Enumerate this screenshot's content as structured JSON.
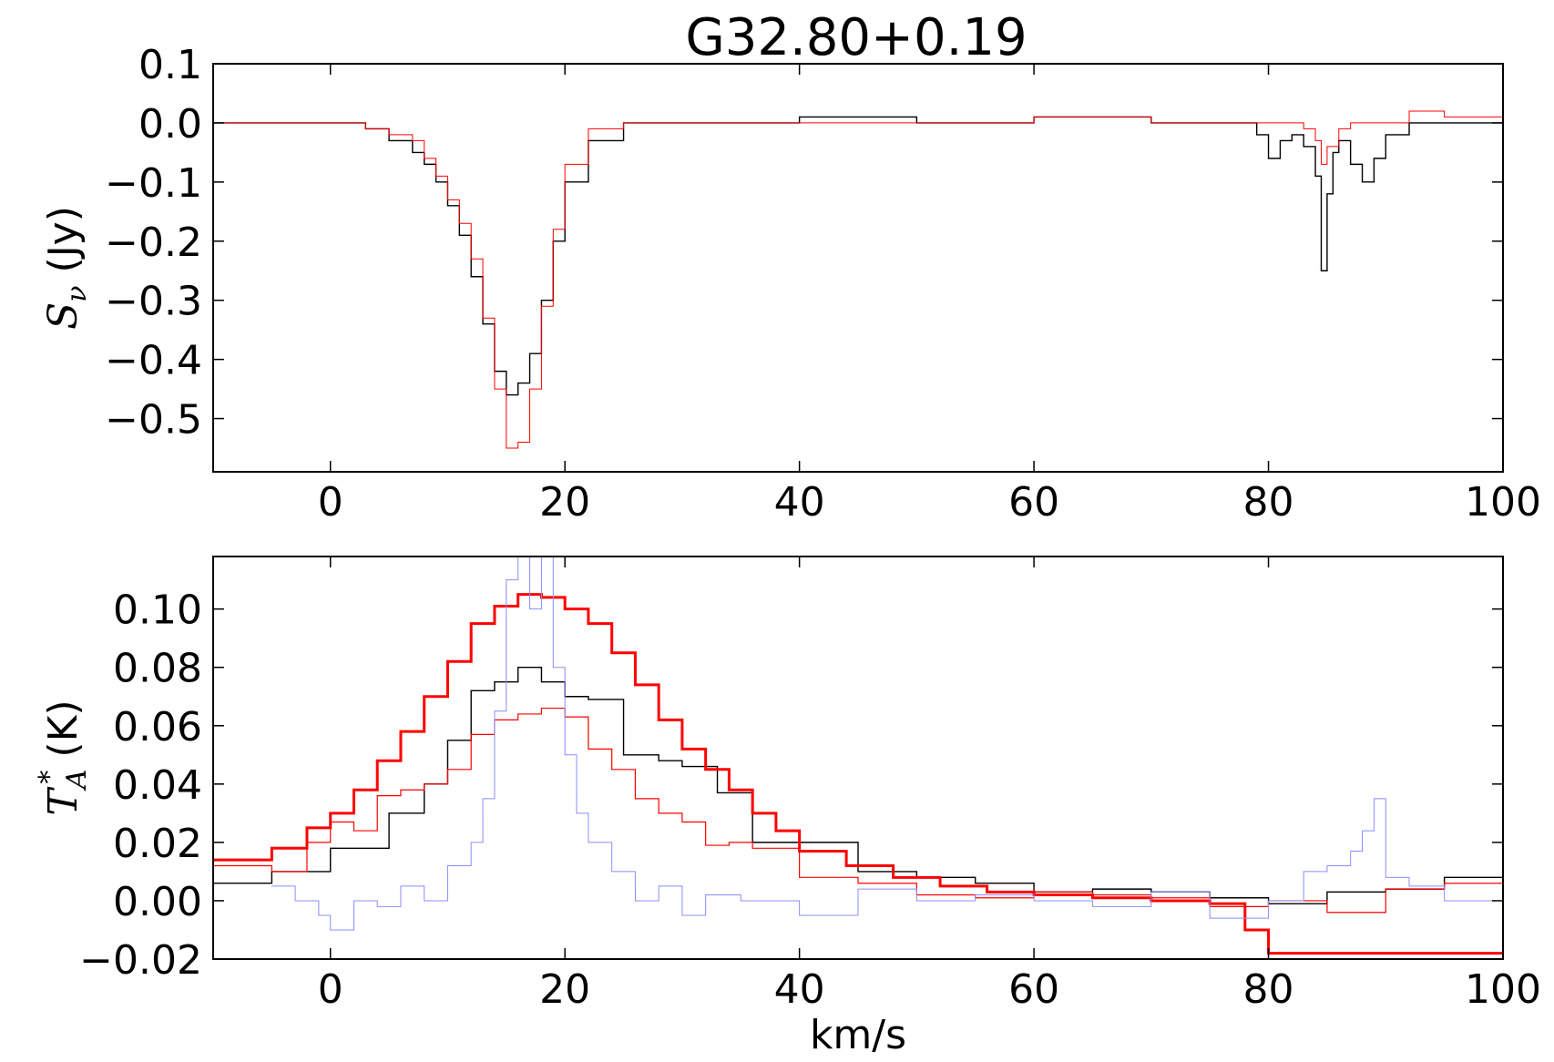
{
  "title": "G32.80+0.19",
  "panels": [
    {
      "id": "top",
      "ylabel": {
        "main": "S",
        "sub": "ν",
        "units": "(Jy)"
      },
      "xlim": [
        -10,
        100
      ],
      "ylim": [
        -0.59,
        0.1
      ],
      "xticks": [
        0,
        20,
        40,
        60,
        80,
        100
      ],
      "xtick_labels": [
        "0",
        "20",
        "40",
        "60",
        "80",
        "100"
      ],
      "yticks": [
        0.1,
        0.0,
        -0.1,
        -0.2,
        -0.3,
        -0.4,
        -0.5
      ],
      "ytick_labels": [
        "0.1",
        "0.0",
        "−0.1",
        "−0.2",
        "−0.3",
        "−0.4",
        "−0.5"
      ]
    },
    {
      "id": "bottom",
      "ylabel": {
        "main": "T",
        "sub": "A",
        "sup": "*",
        "units": "(K)"
      },
      "xlabel": "km/s",
      "xlim": [
        -10,
        100
      ],
      "ylim": [
        -0.02,
        0.118
      ],
      "xticks": [
        0,
        20,
        40,
        60,
        80,
        100
      ],
      "xtick_labels": [
        "0",
        "20",
        "40",
        "60",
        "80",
        "100"
      ],
      "yticks": [
        0.1,
        0.08,
        0.06,
        0.04,
        0.02,
        0.0,
        -0.02
      ],
      "ytick_labels": [
        "0.10",
        "0.08",
        "0.06",
        "0.04",
        "0.02",
        "0.00",
        "−0.02"
      ]
    }
  ],
  "chart_data": [
    {
      "type": "line",
      "title": "G32.80+0.19",
      "xlabel": "",
      "ylabel": "S_nu (Jy)",
      "xlim": [
        -10,
        100
      ],
      "ylim": [
        -0.59,
        0.1
      ],
      "step": true,
      "series": [
        {
          "color": "#000000",
          "linewidth": 1.4,
          "x": [
            -10,
            -5,
            0,
            3,
            5,
            7,
            8,
            9,
            10,
            11,
            12,
            13,
            14,
            15,
            16,
            17,
            18,
            19,
            20,
            22,
            25,
            30,
            40,
            50,
            60,
            70,
            78,
            79,
            80,
            81,
            82,
            83,
            84,
            84.5,
            85,
            85.5,
            86,
            87,
            88,
            89,
            90,
            92,
            95,
            100
          ],
          "y": [
            0.0,
            0.0,
            0.0,
            -0.01,
            -0.03,
            -0.05,
            -0.07,
            -0.1,
            -0.14,
            -0.19,
            -0.26,
            -0.34,
            -0.42,
            -0.46,
            -0.44,
            -0.39,
            -0.3,
            -0.2,
            -0.1,
            -0.03,
            0.0,
            0.0,
            0.01,
            0.0,
            0.01,
            0.0,
            0.0,
            -0.02,
            -0.06,
            -0.03,
            -0.02,
            -0.04,
            -0.09,
            -0.25,
            -0.12,
            -0.05,
            -0.03,
            -0.07,
            -0.1,
            -0.06,
            -0.02,
            0.0,
            0.0,
            0.0
          ]
        },
        {
          "color": "#ff0000",
          "linewidth": 1.0,
          "x": [
            -10,
            -5,
            0,
            3,
            5,
            7,
            8,
            9,
            10,
            11,
            12,
            13,
            14,
            15,
            16,
            17,
            18,
            19,
            20,
            22,
            25,
            30,
            40,
            50,
            60,
            70,
            80,
            83,
            84,
            84.5,
            85,
            86,
            87,
            90,
            92,
            95,
            100
          ],
          "y": [
            0.0,
            0.0,
            0.0,
            -0.01,
            -0.02,
            -0.03,
            -0.06,
            -0.09,
            -0.13,
            -0.17,
            -0.23,
            -0.33,
            -0.45,
            -0.55,
            -0.54,
            -0.45,
            -0.31,
            -0.18,
            -0.07,
            -0.01,
            0.0,
            0.0,
            0.0,
            0.0,
            0.01,
            0.0,
            0.0,
            -0.01,
            -0.03,
            -0.07,
            -0.04,
            -0.01,
            0.0,
            0.0,
            0.02,
            0.01,
            0.0
          ]
        }
      ]
    },
    {
      "type": "line",
      "title": "",
      "xlabel": "km/s",
      "ylabel": "T_A* (K)",
      "xlim": [
        -10,
        100
      ],
      "ylim": [
        -0.02,
        0.118
      ],
      "step": true,
      "series": [
        {
          "color": "#000000",
          "linewidth": 1.4,
          "x": [
            -10,
            -5,
            0,
            5,
            8,
            10,
            12,
            14,
            16,
            18,
            20,
            22,
            25,
            28,
            30,
            33,
            36,
            40,
            45,
            50,
            55,
            60,
            65,
            70,
            75,
            80,
            85,
            90,
            95,
            100
          ],
          "y": [
            0.006,
            0.01,
            0.018,
            0.03,
            0.04,
            0.055,
            0.072,
            0.075,
            0.08,
            0.075,
            0.07,
            0.069,
            0.05,
            0.048,
            0.046,
            0.037,
            0.02,
            0.02,
            0.01,
            0.008,
            0.006,
            0.003,
            0.004,
            0.003,
            0.001,
            -0.001,
            0.003,
            0.004,
            0.008,
            0.01
          ]
        },
        {
          "color": "#ff0000",
          "linewidth": 1.2,
          "x": [
            -10,
            -5,
            -2,
            0,
            2,
            4,
            6,
            8,
            10,
            12,
            14,
            16,
            18,
            20,
            22,
            24,
            26,
            28,
            30,
            32,
            34,
            36,
            40,
            45,
            50,
            55,
            60,
            65,
            70,
            75,
            80,
            85,
            90,
            95,
            100
          ],
          "y": [
            0.012,
            0.01,
            0.02,
            0.027,
            0.024,
            0.036,
            0.038,
            0.04,
            0.045,
            0.057,
            0.062,
            0.064,
            0.066,
            0.063,
            0.052,
            0.045,
            0.035,
            0.03,
            0.027,
            0.019,
            0.02,
            0.018,
            0.008,
            0.006,
            0.002,
            0.001,
            0.003,
            0.002,
            0.001,
            -0.002,
            0.0,
            -0.004,
            0.004,
            0.006,
            0.012
          ]
        },
        {
          "color": "#ff0000",
          "linewidth": 3.0,
          "x": [
            -10,
            -5,
            -2,
            0,
            2,
            4,
            6,
            8,
            10,
            12,
            14,
            16,
            18,
            20,
            22,
            24,
            26,
            28,
            30,
            32,
            34,
            36,
            38,
            40,
            44,
            48,
            52,
            56,
            60,
            65,
            70,
            75,
            78,
            80
          ],
          "y": [
            0.014,
            0.018,
            0.025,
            0.03,
            0.038,
            0.048,
            0.058,
            0.07,
            0.082,
            0.095,
            0.101,
            0.105,
            0.104,
            0.1,
            0.095,
            0.085,
            0.074,
            0.062,
            0.052,
            0.045,
            0.038,
            0.03,
            0.024,
            0.017,
            0.012,
            0.008,
            0.005,
            0.003,
            0.002,
            0.001,
            0.0,
            -0.001,
            -0.01,
            -0.018
          ]
        },
        {
          "color": "#8c8cff",
          "linewidth": 1.0,
          "x": [
            -5,
            -3,
            -1,
            0,
            2,
            4,
            6,
            8,
            10,
            12,
            13,
            14,
            15,
            16,
            17,
            18,
            19,
            20,
            21,
            22,
            24,
            26,
            28,
            30,
            32,
            35,
            40,
            45,
            50,
            55,
            60,
            65,
            70,
            75,
            80,
            83,
            85,
            87,
            88,
            89,
            90,
            92,
            95,
            100
          ],
          "y": [
            0.005,
            0.0,
            -0.005,
            -0.01,
            0.0,
            -0.002,
            0.005,
            0.0,
            0.012,
            0.02,
            0.035,
            0.065,
            0.11,
            0.118,
            0.1,
            0.118,
            0.08,
            0.05,
            0.03,
            0.02,
            0.01,
            0.0,
            0.005,
            -0.005,
            0.002,
            0.0,
            -0.005,
            0.004,
            0.0,
            0.002,
            0.0,
            -0.002,
            0.003,
            -0.006,
            0.0,
            0.01,
            0.012,
            0.017,
            0.024,
            0.035,
            0.008,
            0.005,
            0.0,
            0.002
          ]
        }
      ]
    }
  ]
}
